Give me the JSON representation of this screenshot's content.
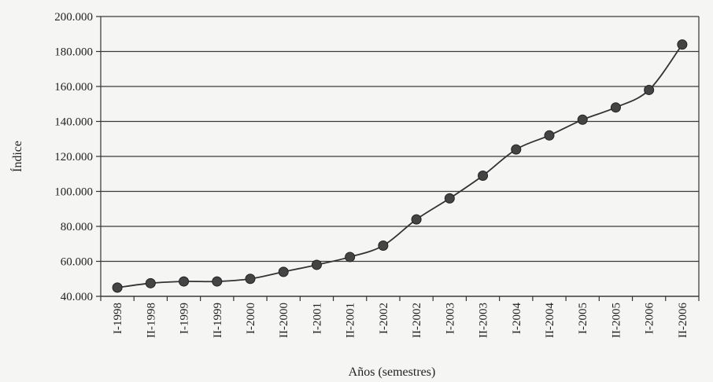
{
  "chart_data": {
    "type": "line",
    "title": "",
    "xlabel": "Años (semestres)",
    "ylabel": "Índice",
    "categories": [
      "I-1998",
      "II-1998",
      "I-1999",
      "II-1999",
      "I-2000",
      "II-2000",
      "I-2001",
      "II-2001",
      "I-2002",
      "II-2002",
      "I-2003",
      "II-2003",
      "I-2004",
      "II-2004",
      "I-2005",
      "II-2005",
      "I-2006",
      "II-2006"
    ],
    "series": [
      {
        "values": [
          45000,
          47500,
          48500,
          48500,
          50000,
          54000,
          58000,
          62500,
          69000,
          84000,
          96000,
          109000,
          124000,
          132000,
          141000,
          148000,
          158000,
          184000
        ]
      }
    ],
    "ylim": [
      40000,
      200000
    ],
    "yticks": [
      40000,
      60000,
      80000,
      100000,
      120000,
      140000,
      160000,
      180000,
      200000
    ],
    "ytick_labels": [
      "40.000",
      "60.000",
      "80.000",
      "100.000",
      "120.000",
      "140.000",
      "160.000",
      "180.000",
      "200.000"
    ],
    "grid": true,
    "legend": "none",
    "line_color": "#333333",
    "marker_color": "#444444"
  }
}
